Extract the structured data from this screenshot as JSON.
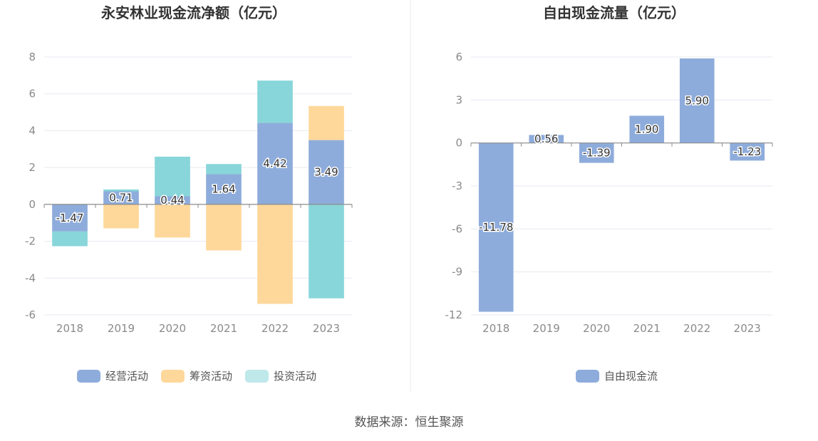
{
  "colors": {
    "operating": "#8eacdb",
    "financing": "#fed89b",
    "investing": "#88d6d9",
    "free": "#8eacdb"
  },
  "source_text": "数据来源：恒生聚源",
  "chart_data": [
    {
      "type": "bar",
      "stacked": true,
      "title": "永安林业现金流净额（亿元）",
      "categories": [
        "2018",
        "2019",
        "2020",
        "2021",
        "2022",
        "2023"
      ],
      "ylim": [
        -6,
        8
      ],
      "yticks": [
        -6,
        -4,
        -2,
        0,
        2,
        4,
        6,
        8
      ],
      "series": [
        {
          "name": "经营活动",
          "color_key": "operating",
          "values": [
            -1.47,
            0.71,
            0.44,
            1.64,
            4.42,
            3.49
          ],
          "labels": [
            "-1.47",
            "0.71",
            "0.44",
            "1.64",
            "4.42",
            "3.49"
          ]
        },
        {
          "name": "筹资活动",
          "color_key": "financing",
          "values": [
            0,
            -1.3,
            -1.8,
            -2.5,
            -5.4,
            1.85
          ]
        },
        {
          "name": "投资活动",
          "color_key": "investing",
          "values": [
            -0.8,
            0.1,
            2.15,
            0.55,
            2.3,
            -5.1
          ]
        }
      ],
      "legend": [
        "经营活动",
        "筹资活动",
        "投资活动"
      ]
    },
    {
      "type": "bar",
      "title": "自由现金流量（亿元）",
      "categories": [
        "2018",
        "2019",
        "2020",
        "2021",
        "2022",
        "2023"
      ],
      "ylim": [
        -12,
        6
      ],
      "yticks": [
        -12,
        -9,
        -6,
        -3,
        0,
        3,
        6
      ],
      "series": [
        {
          "name": "自由现金流",
          "color_key": "free",
          "values": [
            -11.78,
            0.56,
            -1.39,
            1.9,
            5.9,
            -1.23
          ],
          "labels": [
            "-11.78",
            "0.56",
            "-1.39",
            "1.90",
            "5.90",
            "-1.23"
          ]
        }
      ],
      "legend": [
        "自由现金流"
      ]
    }
  ]
}
